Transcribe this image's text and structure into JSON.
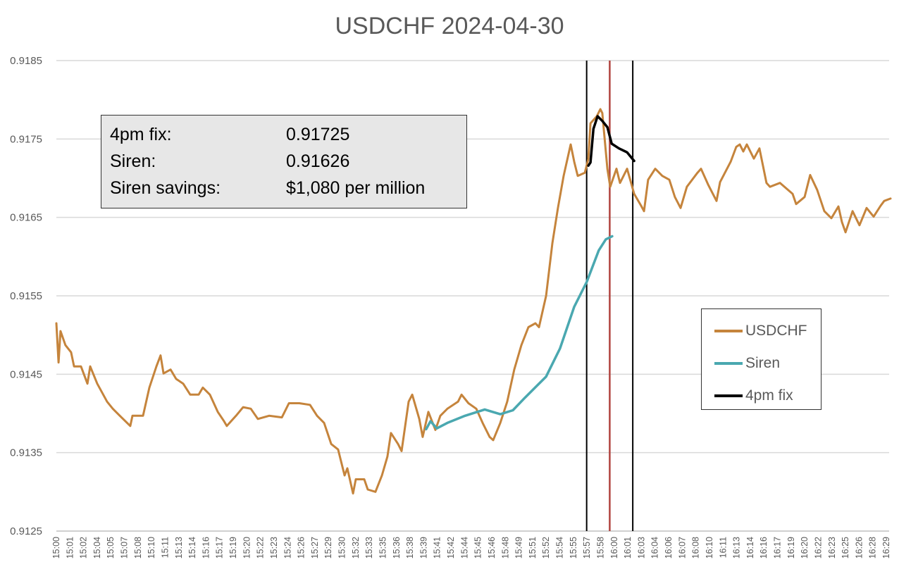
{
  "chart_data": {
    "type": "line",
    "title": "USDCHF 2024-04-30",
    "xlabel": "",
    "ylabel": "",
    "xlim": [
      "15:00:00",
      "16:30:30"
    ],
    "ylim": [
      0.9125,
      0.9185
    ],
    "y_ticks": [
      "0.9125",
      "0.9135",
      "0.9145",
      "0.9155",
      "0.9165",
      "0.9175",
      "0.9185"
    ],
    "x_ticks": [
      "15:00",
      "15:01",
      "15:02",
      "15:04",
      "15:05",
      "15:07",
      "15:08",
      "15:10",
      "15:11",
      "15:13",
      "15:14",
      "15:16",
      "15:17",
      "15:19",
      "15:20",
      "15:22",
      "15:23",
      "15:24",
      "15:26",
      "15:27",
      "15:29",
      "15:30",
      "15:32",
      "15:33",
      "15:35",
      "15:36",
      "15:38",
      "15:39",
      "15:41",
      "15:42",
      "15:44",
      "15:45",
      "15:46",
      "15:48",
      "15:49",
      "15:51",
      "15:52",
      "15:54",
      "15:55",
      "15:57",
      "15:58",
      "16:00",
      "16:01",
      "16:03",
      "16:04",
      "16:06",
      "16:07",
      "16:08",
      "16:10",
      "16:11",
      "16:13",
      "16:14",
      "16:16",
      "16:17",
      "16:19",
      "16:20",
      "16:22",
      "16:23",
      "16:25",
      "16:26",
      "16:28",
      "16:29"
    ],
    "grid": true,
    "legend_position": "right",
    "series": [
      {
        "name": "USDCHF",
        "color": "#c5843c",
        "points": [
          [
            "15:00:00",
            0.91515
          ],
          [
            "15:00:14",
            0.91465
          ],
          [
            "15:00:27",
            0.91505
          ],
          [
            "15:00:59",
            0.91487
          ],
          [
            "15:01:36",
            0.91478
          ],
          [
            "15:01:55",
            0.9146
          ],
          [
            "15:02:40",
            0.9146
          ],
          [
            "15:03:22",
            0.91438
          ],
          [
            "15:03:40",
            0.9146
          ],
          [
            "15:04:26",
            0.91438
          ],
          [
            "15:05:30",
            0.91415
          ],
          [
            "15:06:07",
            0.91406
          ],
          [
            "15:06:53",
            0.91397
          ],
          [
            "15:08:01",
            0.91384
          ],
          [
            "15:08:15",
            0.91397
          ],
          [
            "15:09:24",
            0.91397
          ],
          [
            "15:10:05",
            0.91433
          ],
          [
            "15:10:51",
            0.9146
          ],
          [
            "15:11:18",
            0.91474
          ],
          [
            "15:11:37",
            0.91451
          ],
          [
            "15:12:23",
            0.91456
          ],
          [
            "15:12:59",
            0.91444
          ],
          [
            "15:13:45",
            0.91438
          ],
          [
            "15:14:31",
            0.91424
          ],
          [
            "15:15:26",
            0.91424
          ],
          [
            "15:15:53",
            0.91433
          ],
          [
            "15:16:39",
            0.91424
          ],
          [
            "15:17:30",
            0.91402
          ],
          [
            "15:18:11",
            0.9139
          ],
          [
            "15:18:29",
            0.91384
          ],
          [
            "15:19:29",
            0.91397
          ],
          [
            "15:20:15",
            0.91408
          ],
          [
            "15:21:05",
            0.91406
          ],
          [
            "15:21:51",
            0.91393
          ],
          [
            "15:23:04",
            0.91397
          ],
          [
            "15:24:27",
            0.91395
          ],
          [
            "15:25:13",
            0.91413
          ],
          [
            "15:26:21",
            0.91413
          ],
          [
            "15:27:30",
            0.91411
          ],
          [
            "15:28:16",
            0.91397
          ],
          [
            "15:29:02",
            0.91388
          ],
          [
            "15:29:48",
            0.91361
          ],
          [
            "15:30:33",
            0.91354
          ],
          [
            "15:31:15",
            0.91321
          ],
          [
            "15:31:33",
            0.9133
          ],
          [
            "15:32:10",
            0.91298
          ],
          [
            "15:32:28",
            0.91316
          ],
          [
            "15:33:23",
            0.91316
          ],
          [
            "15:33:46",
            0.91303
          ],
          [
            "15:34:36",
            0.913
          ],
          [
            "15:35:18",
            0.91321
          ],
          [
            "15:35:54",
            0.91345
          ],
          [
            "15:36:17",
            0.91375
          ],
          [
            "15:37:03",
            0.91361
          ],
          [
            "15:37:26",
            0.91352
          ],
          [
            "15:38:12",
            0.91415
          ],
          [
            "15:38:35",
            0.91424
          ],
          [
            "15:39:21",
            0.91393
          ],
          [
            "15:39:43",
            0.9137
          ],
          [
            "15:40:20",
            0.91402
          ],
          [
            "15:41:06",
            0.91379
          ],
          [
            "15:41:38",
            0.91397
          ],
          [
            "15:42:24",
            0.91406
          ],
          [
            "15:43:33",
            0.91415
          ],
          [
            "15:43:56",
            0.91424
          ],
          [
            "15:44:41",
            0.91413
          ],
          [
            "15:45:32",
            0.91406
          ],
          [
            "15:46:13",
            0.91388
          ],
          [
            "15:46:59",
            0.9137
          ],
          [
            "15:47:22",
            0.91366
          ],
          [
            "15:48:08",
            0.91388
          ],
          [
            "15:48:53",
            0.91415
          ],
          [
            "15:49:39",
            0.91456
          ],
          [
            "15:50:25",
            0.91487
          ],
          [
            "15:51:11",
            0.9151
          ],
          [
            "15:51:57",
            0.91515
          ],
          [
            "15:52:20",
            0.9151
          ],
          [
            "15:53:06",
            0.9155
          ],
          [
            "15:53:47",
            0.91617
          ],
          [
            "15:54:23",
            0.91662
          ],
          [
            "15:55:00",
            0.91703
          ],
          [
            "15:55:46",
            0.91743
          ],
          [
            "15:56:09",
            0.91721
          ],
          [
            "15:56:32",
            0.91703
          ],
          [
            "15:57:18",
            0.91707
          ],
          [
            "15:57:41",
            0.91725
          ],
          [
            "15:57:55",
            0.9177
          ],
          [
            "15:58:36",
            0.91779
          ],
          [
            "15:58:59",
            0.91788
          ],
          [
            "15:59:12",
            0.91783
          ],
          [
            "15:59:45",
            0.91712
          ],
          [
            "16:00:03",
            0.91689
          ],
          [
            "16:00:44",
            0.91712
          ],
          [
            "16:01:07",
            0.91694
          ],
          [
            "16:01:53",
            0.91712
          ],
          [
            "16:02:39",
            0.9168
          ],
          [
            "16:03:24",
            0.91665
          ],
          [
            "16:03:43",
            0.91658
          ],
          [
            "16:04:10",
            0.91698
          ],
          [
            "16:04:56",
            0.91712
          ],
          [
            "16:05:42",
            0.91703
          ],
          [
            "16:06:28",
            0.91698
          ],
          [
            "16:07:04",
            0.91676
          ],
          [
            "16:07:41",
            0.91662
          ],
          [
            "16:08:22",
            0.91689
          ],
          [
            "16:09:31",
            0.91707
          ],
          [
            "16:09:54",
            0.91712
          ],
          [
            "16:10:40",
            0.91692
          ],
          [
            "16:11:35",
            0.91671
          ],
          [
            "16:11:58",
            0.91695
          ],
          [
            "16:13:07",
            0.91721
          ],
          [
            "16:13:43",
            0.9174
          ],
          [
            "16:14:06",
            0.91743
          ],
          [
            "16:14:29",
            0.91734
          ],
          [
            "16:14:52",
            0.91743
          ],
          [
            "16:15:38",
            0.91725
          ],
          [
            "16:16:14",
            0.91738
          ],
          [
            "16:17:00",
            0.91694
          ],
          [
            "16:17:23",
            0.91689
          ],
          [
            "16:18:28",
            0.91694
          ],
          [
            "16:19:50",
            0.9168
          ],
          [
            "16:20:13",
            0.91667
          ],
          [
            "16:21:08",
            0.91676
          ],
          [
            "16:21:44",
            0.91704
          ],
          [
            "16:22:30",
            0.91685
          ],
          [
            "16:23:16",
            0.91658
          ],
          [
            "16:24:02",
            0.91649
          ],
          [
            "16:24:48",
            0.91664
          ],
          [
            "16:25:11",
            0.91644
          ],
          [
            "16:25:34",
            0.91631
          ],
          [
            "16:26:20",
            0.91658
          ],
          [
            "16:27:05",
            0.9164
          ],
          [
            "16:27:51",
            0.91662
          ],
          [
            "16:28:37",
            0.91651
          ],
          [
            "16:29:23",
            0.91665
          ],
          [
            "16:29:46",
            0.91671
          ],
          [
            "16:30:27",
            0.91674
          ]
        ]
      },
      {
        "name": "Siren",
        "color": "#4aa8b0",
        "points": [
          [
            "15:40:06",
            0.9138
          ],
          [
            "15:40:34",
            0.9139
          ],
          [
            "15:41:15",
            0.91381
          ],
          [
            "15:42:24",
            0.91388
          ],
          [
            "15:44:19",
            0.91397
          ],
          [
            "15:46:27",
            0.91405
          ],
          [
            "15:48:08",
            0.91399
          ],
          [
            "15:49:30",
            0.91404
          ],
          [
            "15:50:48",
            0.9142
          ],
          [
            "15:53:06",
            0.91447
          ],
          [
            "15:54:37",
            0.91483
          ],
          [
            "15:56:09",
            0.91536
          ],
          [
            "15:57:31",
            0.91568
          ],
          [
            "15:58:49",
            0.91608
          ],
          [
            "15:59:35",
            0.91622
          ],
          [
            "16:00:16",
            0.91626
          ]
        ]
      },
      {
        "name": "4pm fix",
        "color": "#000000",
        "points": [
          [
            "15:57:41",
            0.91716
          ],
          [
            "15:57:55",
            0.9172
          ],
          [
            "15:58:14",
            0.91763
          ],
          [
            "15:58:41",
            0.91779
          ],
          [
            "15:59:12",
            0.91773
          ],
          [
            "15:59:45",
            0.91765
          ],
          [
            "16:00:13",
            0.91744
          ],
          [
            "16:01:00",
            0.91738
          ],
          [
            "16:01:53",
            0.91733
          ],
          [
            "16:02:39",
            0.91722
          ]
        ]
      }
    ],
    "vertical_lines": [
      {
        "x": "15:57:30",
        "color": "#000000"
      },
      {
        "x": "16:00:00",
        "color": "#b0433f"
      },
      {
        "x": "16:02:30",
        "color": "#000000"
      }
    ],
    "annotation": {
      "rows": [
        {
          "label": "4pm fix:",
          "value": "0.91725"
        },
        {
          "label": "Siren:",
          "value": "0.91626"
        },
        {
          "label": "Siren savings:",
          "value": "$1,080 per million"
        }
      ]
    }
  }
}
